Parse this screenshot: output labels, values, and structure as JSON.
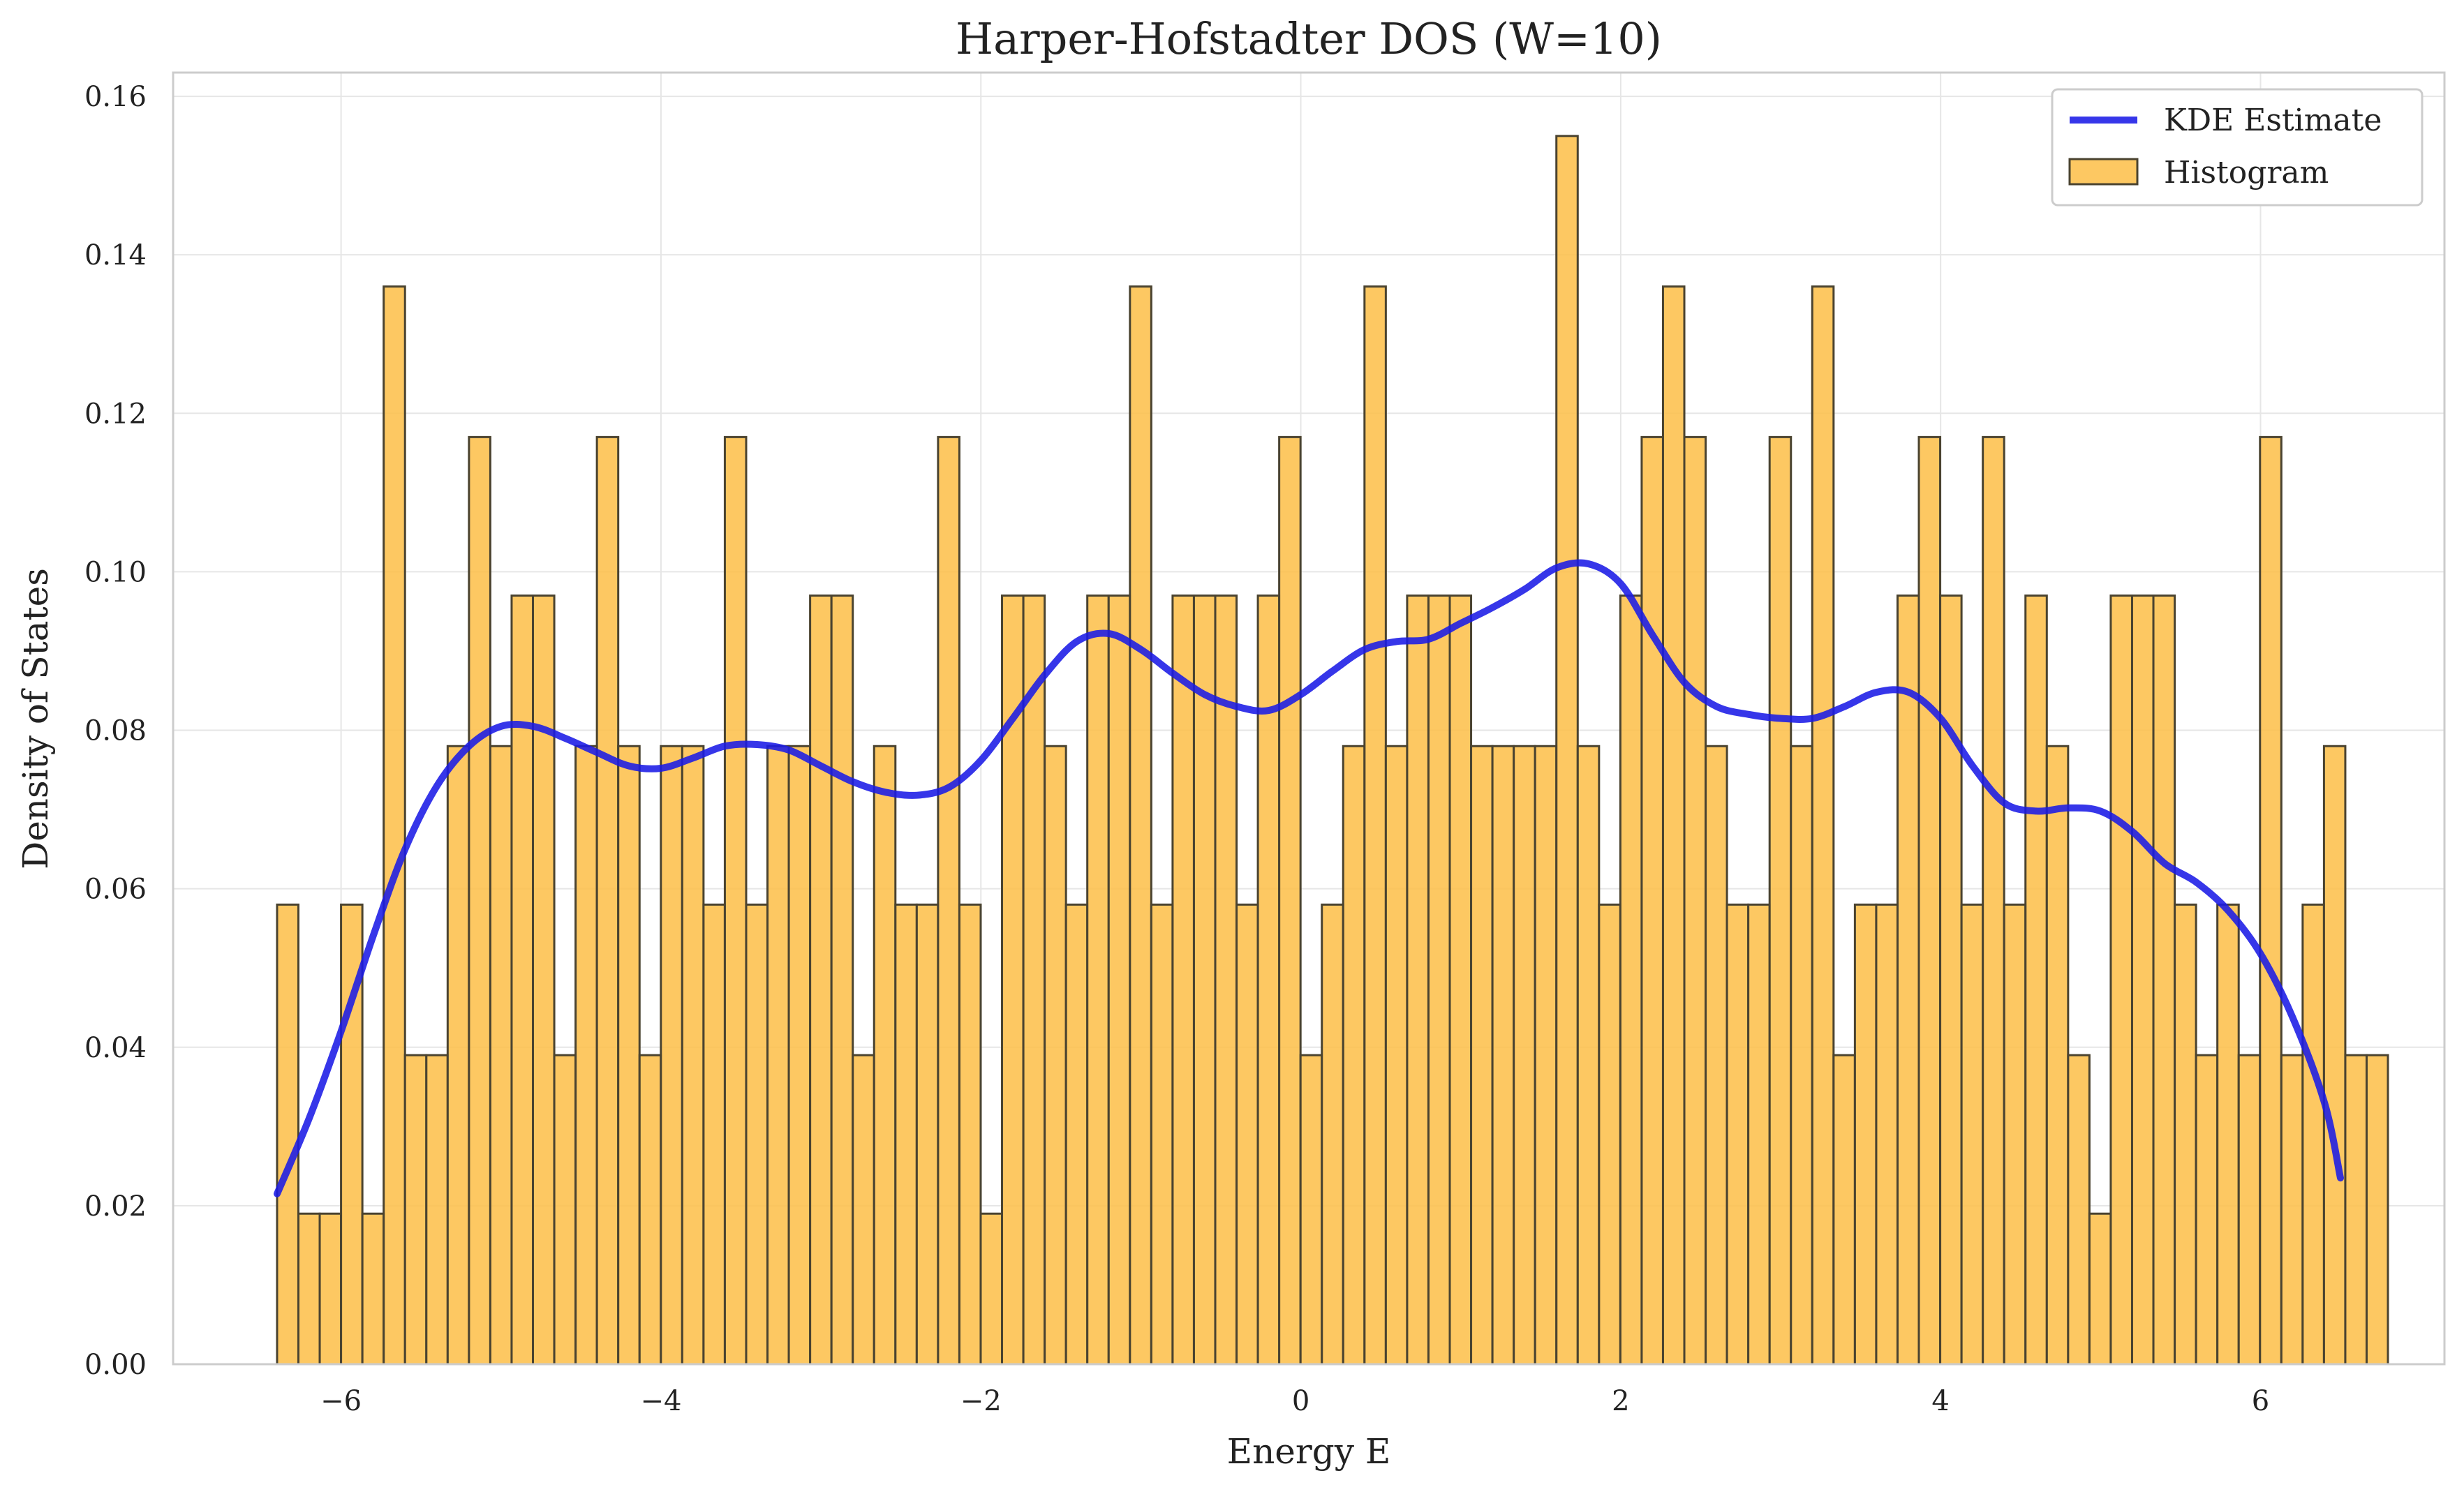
{
  "chart_data": {
    "type": "bar",
    "title": "Harper-Hofstadter DOS (W=10)",
    "xlabel": "Energy E",
    "ylabel": "Density of States",
    "xlim": [
      -7.05,
      7.15
    ],
    "ylim": [
      0.0,
      0.163
    ],
    "x_ticks": [
      -6,
      -4,
      -2,
      0,
      2,
      4,
      6
    ],
    "x_tick_labels": [
      "−6",
      "−4",
      "−2",
      "0",
      "2",
      "4",
      "6"
    ],
    "y_ticks": [
      0.0,
      0.02,
      0.04,
      0.06,
      0.08,
      0.1,
      0.12,
      0.14,
      0.16
    ],
    "y_tick_labels": [
      "0.00",
      "0.02",
      "0.04",
      "0.06",
      "0.08",
      "0.10",
      "0.12",
      "0.14",
      "0.16"
    ],
    "grid": true,
    "legend_position": "top-right",
    "colors": {
      "bar_fill": "#fdbe46",
      "bar_edge": "#4a4330",
      "kde": "#1a1ae6",
      "grid": "#e6e6e6",
      "frame": "#cccccc",
      "text": "#222222"
    },
    "series": [
      {
        "name": "Histogram",
        "type": "histogram",
        "bin_start": -6.4,
        "bin_width": 0.1333,
        "values": [
          0.058,
          0.019,
          0.019,
          0.058,
          0.019,
          0.136,
          0.039,
          0.039,
          0.078,
          0.117,
          0.078,
          0.097,
          0.097,
          0.039,
          0.078,
          0.117,
          0.078,
          0.039,
          0.078,
          0.078,
          0.058,
          0.117,
          0.058,
          0.078,
          0.078,
          0.097,
          0.097,
          0.039,
          0.078,
          0.058,
          0.058,
          0.117,
          0.058,
          0.019,
          0.097,
          0.097,
          0.078,
          0.058,
          0.097,
          0.097,
          0.136,
          0.058,
          0.097,
          0.097,
          0.097,
          0.058,
          0.097,
          0.117,
          0.039,
          0.058,
          0.078,
          0.136,
          0.078,
          0.097,
          0.097,
          0.097,
          0.078,
          0.078,
          0.078,
          0.078,
          0.155,
          0.078,
          0.058,
          0.097,
          0.117,
          0.136,
          0.117,
          0.078,
          0.058,
          0.058,
          0.117,
          0.078,
          0.136,
          0.039,
          0.058,
          0.058,
          0.097,
          0.117,
          0.097,
          0.058,
          0.117,
          0.058,
          0.097,
          0.078,
          0.039,
          0.019,
          0.097,
          0.097,
          0.097,
          0.058,
          0.039,
          0.058,
          0.039,
          0.117,
          0.039,
          0.058,
          0.078,
          0.039,
          0.039
        ]
      },
      {
        "name": "KDE Estimate",
        "type": "line",
        "x": [
          -6.4,
          -6.2,
          -6.0,
          -5.8,
          -5.6,
          -5.4,
          -5.2,
          -5.0,
          -4.8,
          -4.6,
          -4.4,
          -4.2,
          -4.0,
          -3.8,
          -3.6,
          -3.4,
          -3.2,
          -3.0,
          -2.8,
          -2.6,
          -2.4,
          -2.2,
          -2.0,
          -1.8,
          -1.6,
          -1.4,
          -1.2,
          -1.0,
          -0.8,
          -0.6,
          -0.4,
          -0.2,
          0.0,
          0.2,
          0.4,
          0.6,
          0.8,
          1.0,
          1.2,
          1.4,
          1.6,
          1.8,
          2.0,
          2.2,
          2.4,
          2.6,
          2.8,
          3.0,
          3.2,
          3.4,
          3.6,
          3.8,
          4.0,
          4.2,
          4.4,
          4.6,
          4.8,
          5.0,
          5.2,
          5.4,
          5.6,
          5.8,
          6.0,
          6.2,
          6.4,
          6.5
        ],
        "y": [
          0.0215,
          0.031,
          0.042,
          0.054,
          0.065,
          0.073,
          0.078,
          0.0805,
          0.0805,
          0.079,
          0.0772,
          0.0755,
          0.0752,
          0.0765,
          0.078,
          0.0782,
          0.0775,
          0.0755,
          0.0735,
          0.0722,
          0.0718,
          0.0728,
          0.0762,
          0.0815,
          0.087,
          0.0912,
          0.0922,
          0.0902,
          0.0872,
          0.0845,
          0.083,
          0.0825,
          0.0845,
          0.0875,
          0.0902,
          0.0912,
          0.0915,
          0.0935,
          0.0955,
          0.0978,
          0.1005,
          0.101,
          0.0985,
          0.092,
          0.086,
          0.083,
          0.082,
          0.0815,
          0.0815,
          0.083,
          0.0848,
          0.0848,
          0.0815,
          0.0755,
          0.0708,
          0.0698,
          0.0702,
          0.0698,
          0.0672,
          0.0632,
          0.0608,
          0.0572,
          0.0518,
          0.0438,
          0.033,
          0.0235
        ]
      }
    ]
  }
}
